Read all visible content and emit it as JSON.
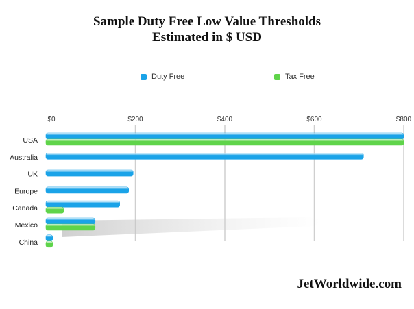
{
  "title_line1": "Sample Duty Free Low Value Thresholds",
  "title_line2": "Estimated in $ USD",
  "footer": "JetWorldwide.com",
  "colors": {
    "duty_free": "#1aa3e8",
    "tax_free": "#5fd44a"
  },
  "chart_data": {
    "type": "bar",
    "orientation": "horizontal",
    "categories": [
      "USA",
      "Australia",
      "UK",
      "Europe",
      "Canada",
      "Mexico",
      "China"
    ],
    "series": [
      {
        "name": "Duty Free",
        "values": [
          800,
          710,
          195,
          185,
          165,
          110,
          15
        ]
      },
      {
        "name": "Tax Free",
        "values": [
          800,
          0,
          0,
          0,
          40,
          110,
          15
        ]
      }
    ],
    "x_ticks": [
      "$0",
      "$200",
      "$400",
      "$600",
      "$800"
    ],
    "x_tick_values": [
      0,
      200,
      400,
      600,
      800
    ],
    "xlim": [
      0,
      800
    ],
    "x_axis_position": "top",
    "grid": true,
    "legend_position": "top"
  }
}
